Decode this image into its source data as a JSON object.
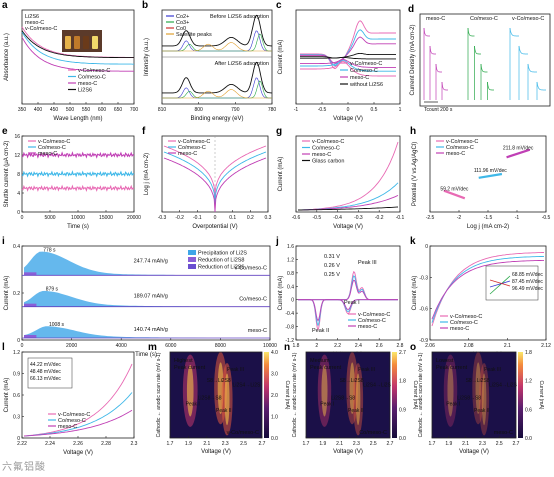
{
  "colors": {
    "pink": "#e86ab4",
    "cyan": "#3fb8e8",
    "magenta": "#c03fb5",
    "black": "#111111"
  },
  "watermark": "六氟铝酸",
  "chart_data": [
    {
      "id": "a",
      "type": "line",
      "panel": "a",
      "xlabel": "Wave Length (nm)",
      "ylabel": "Absorbance (a.u.)",
      "xlim": [
        350,
        700
      ],
      "xticks": [
        350,
        400,
        450,
        500,
        550,
        600,
        650,
        700
      ],
      "legend_top": [
        "Li2S6",
        "meso-C",
        "v-Co/meso-C"
      ],
      "legend_bottom": [
        "v-Co/meso-C",
        "Co/meso-C",
        "meso-C",
        "Li2S6"
      ],
      "series": [
        {
          "name": "v-Co/meso-C",
          "color": "pink"
        },
        {
          "name": "Co/meso-C",
          "color": "cyan"
        },
        {
          "name": "meso-C",
          "color": "magenta"
        },
        {
          "name": "Li2S6",
          "color": "black"
        }
      ]
    },
    {
      "id": "b",
      "type": "line",
      "panel": "b",
      "xlabel": "Binding energy (eV)",
      "ylabel": "Intensity (a.u.)",
      "xticks": [
        810,
        800,
        790,
        780
      ],
      "legend": [
        "Co2+",
        "Co3+",
        "Co0",
        "Satellite peaks"
      ],
      "annotations": [
        "Before Li2S6 adsorption",
        "After Li2S6 adsorption"
      ]
    },
    {
      "id": "c",
      "type": "line",
      "panel": "c",
      "xlabel": "Voltage (V)",
      "ylabel": "Current (mA)",
      "xlim": [
        -1.0,
        1.0
      ],
      "xticks": [
        -1.0,
        -0.5,
        0.0,
        0.5,
        1.0
      ],
      "legend": [
        "v-Co/meso-C",
        "Co/meso-C",
        "meso-C",
        "without Li2S6"
      ]
    },
    {
      "id": "d",
      "type": "line",
      "panel": "d",
      "ylabel": "Current Density (mA cm-2)",
      "labels": [
        "meso-C",
        "Co/meso-C",
        "v-Co/meso-C"
      ],
      "scale_label": "Tcount 200 s"
    },
    {
      "id": "e",
      "type": "line",
      "panel": "e",
      "xlabel": "Time (s)",
      "ylabel": "Shuttle current (μA cm-2)",
      "xlim": [
        0,
        20000
      ],
      "ylim": [
        0,
        16
      ],
      "xticks": [
        0,
        5000,
        10000,
        15000,
        20000
      ],
      "yticks": [
        0,
        4,
        8,
        12,
        16
      ],
      "legend": [
        "v-Co/meso-C",
        "Co/meso-C",
        "meso-C"
      ],
      "series": [
        {
          "name": "v-Co/meso-C",
          "color": "pink",
          "level": 5
        },
        {
          "name": "Co/meso-C",
          "color": "cyan",
          "level": 8
        },
        {
          "name": "meso-C",
          "color": "magenta",
          "level": 12
        }
      ]
    },
    {
      "id": "f",
      "type": "line",
      "panel": "f",
      "xlabel": "Overpotential (V)",
      "ylabel": "Log j (mA cm-2)",
      "xlim": [
        -0.3,
        0.3
      ],
      "xticks": [
        -0.3,
        -0.2,
        -0.1,
        0.0,
        0.1,
        0.2,
        0.3
      ],
      "legend": [
        "v-Co/meso-C",
        "Co/meso-C",
        "meso-C"
      ]
    },
    {
      "id": "g",
      "type": "line",
      "panel": "g",
      "xlabel": "Voltage (V)",
      "ylabel": "Current (mA)",
      "xlim": [
        -0.6,
        -0.1
      ],
      "xticks": [
        -0.6,
        -0.5,
        -0.4,
        -0.3,
        -0.2,
        -0.1
      ],
      "legend": [
        "v-Co/meso-C",
        "Co/meso-C",
        "meso-C",
        "Glass carbon"
      ]
    },
    {
      "id": "h",
      "type": "scatter",
      "panel": "h",
      "xlabel": "Log j (mA cm-2)",
      "ylabel": "Potential (V vs.Ag/AgCl)",
      "xticks": [
        -2.5,
        -2.0,
        -1.5,
        -1.0,
        -0.5
      ],
      "legend": [
        "v-Co/meso-C",
        "Co/meso-C",
        "meso-C"
      ],
      "slopes": [
        "59.2 mV/dec",
        "111.96 mV/dec",
        "211.8 mV/dec"
      ]
    },
    {
      "id": "i",
      "type": "area",
      "panel": "i",
      "xlabel": "Time (s)",
      "ylabel": "Current (mA)",
      "xlim": [
        0,
        10000
      ],
      "xticks": [
        0,
        2000,
        4000,
        6000,
        8000,
        10000
      ],
      "yticks": [
        0.0,
        0.2,
        0.4
      ],
      "legend": [
        "Precipitation of Li2S",
        "Reduction of Li2S8",
        "Reduction of Li2S6"
      ],
      "rows": [
        {
          "name": "v-Co/meso-C",
          "peak_time": "778 s",
          "capacity": "247.74 mAh/g"
        },
        {
          "name": "Co/meso-C",
          "peak_time": "879 s",
          "capacity": "189.07 mAh/g"
        },
        {
          "name": "meso-C",
          "peak_time": "1008 s",
          "capacity": "140.74 mAh/g"
        }
      ]
    },
    {
      "id": "j",
      "type": "line",
      "panel": "j",
      "xlabel": "Voltage (V)",
      "ylabel": "Current (mA)",
      "xlim": [
        1.8,
        2.8
      ],
      "xticks": [
        1.8,
        2.0,
        2.2,
        2.4,
        2.6,
        2.8
      ],
      "yticks": [
        -1.2,
        -0.8,
        -0.4,
        0.0,
        0.4,
        0.8,
        1.2,
        1.6
      ],
      "annotations": [
        "0.31 V",
        "0.26 V",
        "0.25 V",
        "Peak III",
        "Peak I",
        "Peak II"
      ],
      "legend": [
        "v-Co/meso-C",
        "Co/meso-C",
        "meso-C"
      ]
    },
    {
      "id": "k",
      "type": "line",
      "panel": "k",
      "xlabel": "Voltage (V)",
      "ylabel": "Current (mA)",
      "xlim": [
        2.06,
        2.12
      ],
      "xticks": [
        2.06,
        2.08,
        2.1,
        2.12
      ],
      "yticks": [
        -0.9,
        -0.6,
        -0.3,
        0.0
      ],
      "legend": [
        "v-Co/meso-C",
        "Co/meso-C",
        "meso-C"
      ],
      "inset_slopes": [
        "68.85 mV/dec",
        "87.45 mV/dec",
        "96.49 mV/dec"
      ]
    },
    {
      "id": "l",
      "type": "line",
      "panel": "l",
      "xlabel": "Voltage (V)",
      "ylabel": "Current (mA)",
      "xlim": [
        2.22,
        2.3
      ],
      "xticks": [
        2.22,
        2.24,
        2.26,
        2.28,
        2.3
      ],
      "yticks": [
        0.0,
        0.3,
        0.6,
        0.9,
        1.2
      ],
      "legend": [
        "v-Co/meso-C",
        "Co/meso-C",
        "meso-C"
      ],
      "inset_slopes": [
        "44.22 mV/dec",
        "48.48 mV/dec",
        "66.13 mV/dec"
      ]
    },
    {
      "id": "m",
      "type": "heatmap",
      "panel": "m",
      "xlabel": "Voltage (V)",
      "ylabel": "Cathodic ← anodic scan rate (mV s-1)",
      "xticks": [
        1.7,
        1.9,
        2.1,
        2.3,
        2.5,
        2.7
      ],
      "cbar": [
        0.0,
        1.0,
        2.0,
        3.0,
        4.0
      ],
      "cbar_label": "Current (mA)",
      "note": "Highest Peak current",
      "sample": "v-Co/meso-C",
      "peaks": [
        "Peak I",
        "Peak II",
        "Peak III"
      ],
      "species": [
        "Li2S8→S8",
        "S8→Li2S8",
        "Li2S4→Li2S"
      ]
    },
    {
      "id": "n",
      "type": "heatmap",
      "panel": "n",
      "xlabel": "Voltage (V)",
      "ylabel": "Cathodic ← anodic scan rate (mV s-1)",
      "xticks": [
        1.7,
        1.9,
        2.1,
        2.3,
        2.5,
        2.7
      ],
      "cbar": [
        0.0,
        0.9,
        1.8,
        2.7
      ],
      "cbar_label": "Current (mA)",
      "note": "Medium Peak current",
      "sample": "Co/meso-C",
      "peaks": [
        "Peak I",
        "Peak II",
        "Peak III"
      ],
      "species": [
        "Li2S8→S8",
        "S8→Li2S8",
        "Li2S4→Li2S"
      ]
    },
    {
      "id": "o",
      "type": "heatmap",
      "panel": "o",
      "xlabel": "Voltage (V)",
      "ylabel": "Cathodic ← anodic scan rate (mV s-1)",
      "xticks": [
        1.7,
        1.9,
        2.1,
        2.3,
        2.5,
        2.7
      ],
      "cbar": [
        0.0,
        0.6,
        1.2,
        1.8
      ],
      "cbar_label": "Current (mA)",
      "note": "Lowest Peak current",
      "sample": "meso-C",
      "peaks": [
        "Peak I",
        "Peak II",
        "Peak III"
      ],
      "species": [
        "Li2S8→S8",
        "S8→Li2S8",
        "Li2S4→Li2S"
      ]
    }
  ]
}
